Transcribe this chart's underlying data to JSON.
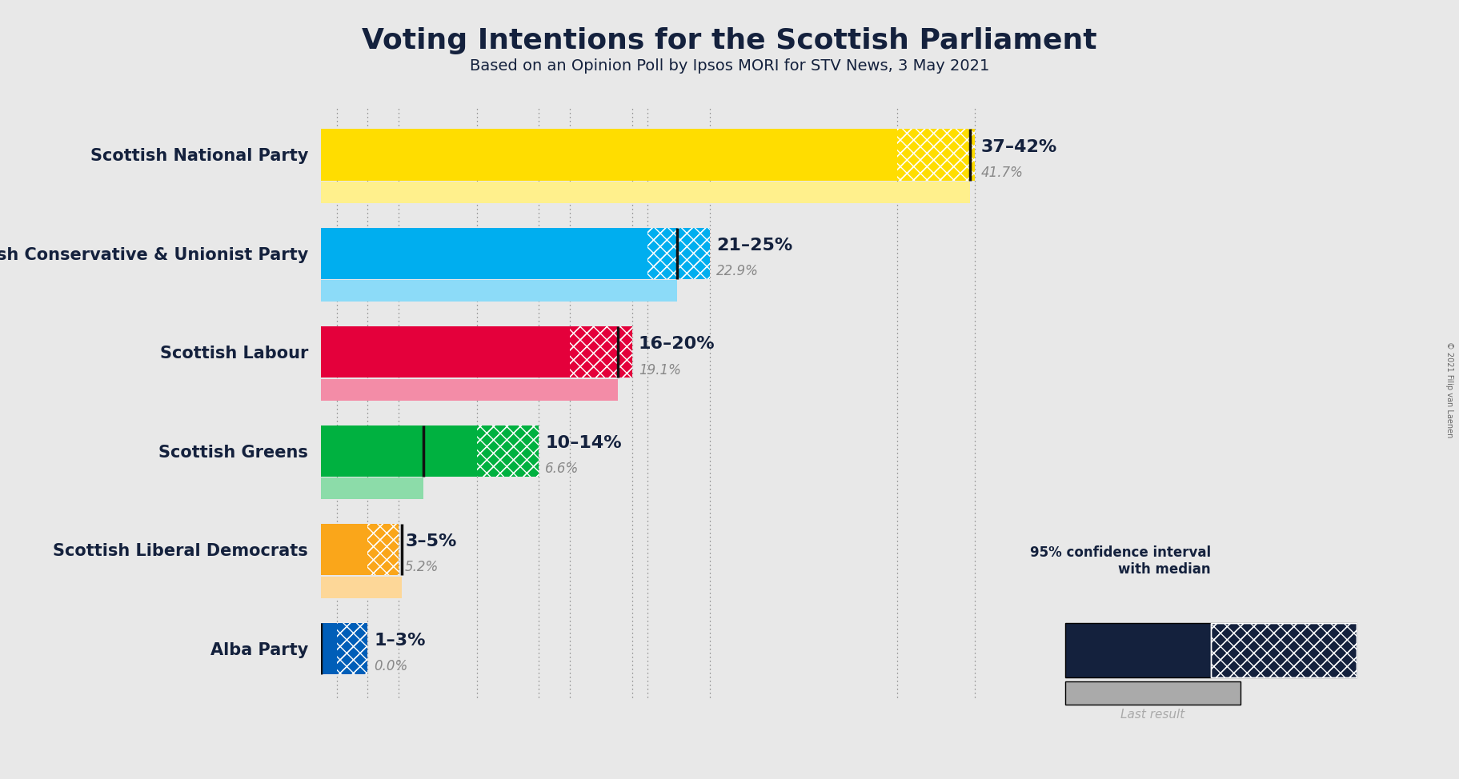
{
  "title": "Voting Intentions for the Scottish Parliament",
  "subtitle": "Based on an Opinion Poll by Ipsos MORI for STV News, 3 May 2021",
  "copyright": "© 2021 Filip van Laenen",
  "background_color": "#e8e8e8",
  "parties": [
    "Scottish National Party",
    "Scottish Conservative & Unionist Party",
    "Scottish Labour",
    "Scottish Greens",
    "Scottish Liberal Democrats",
    "Alba Party"
  ],
  "ci_low": [
    37,
    21,
    16,
    10,
    3,
    1
  ],
  "ci_high": [
    42,
    25,
    20,
    14,
    5,
    3
  ],
  "median": [
    41.7,
    22.9,
    19.1,
    6.6,
    5.2,
    0.0
  ],
  "last_result": [
    41.7,
    22.9,
    19.1,
    6.6,
    5.2,
    0.0
  ],
  "colors": [
    "#FFDD00",
    "#00AEEF",
    "#E4003B",
    "#00B140",
    "#FAA61A",
    "#005EB8"
  ],
  "labels": [
    "37–42%",
    "21–25%",
    "16–20%",
    "10–14%",
    "3–5%",
    "1–3%"
  ],
  "median_labels": [
    "41.7%",
    "22.9%",
    "19.1%",
    "6.6%",
    "5.2%",
    "0.0%"
  ],
  "xlim_max": 45,
  "dark_navy": "#14213d",
  "gray_last": "#aaaaaa",
  "label_fontsize": 16,
  "median_label_fontsize": 12,
  "party_fontsize": 15,
  "title_fontsize": 26,
  "subtitle_fontsize": 14
}
